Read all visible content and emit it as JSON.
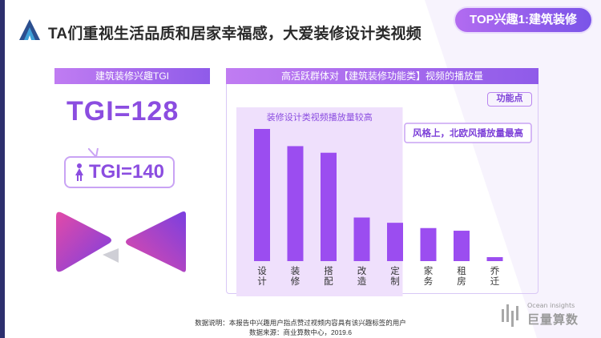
{
  "page": {
    "title": "TA们重视生活品质和居家幸福感，大爱装修设计类视频",
    "tag": "TOP兴趣1:建筑装修"
  },
  "left": {
    "header": "建筑装修兴趣TGI",
    "tgi_main": "TGI=128",
    "tgi_female": "TGI=140"
  },
  "colors": {
    "accent": "#8b4de0",
    "bar": "#9b4df0",
    "highlight": "#efe0fc"
  },
  "panel": {
    "header": "高活跃群体对【建筑装修功能类】视频的播放量",
    "feature_tag": "功能点"
  },
  "chart_data": {
    "type": "bar",
    "categories": [
      "设计",
      "装修",
      "搭配",
      "改造",
      "定制",
      "家务",
      "租房",
      "乔迁"
    ],
    "values": [
      100,
      87,
      82,
      33,
      29,
      25,
      23,
      3
    ],
    "title": "",
    "xlabel": "",
    "ylabel": "",
    "ylim": [
      0,
      100
    ],
    "grid": false,
    "highlight_region": {
      "categories": [
        "设计",
        "装修",
        "搭配",
        "改造",
        "定制"
      ],
      "label": "装修设计类视频播放量较高"
    },
    "annotation": "风格上，北欧风播放量最高"
  },
  "footer": {
    "note": "数据说明：本报告中兴趣用户指点赞过视频内容具有该兴趣标签的用户",
    "source": "数据来源：商业算数中心，2019.6"
  },
  "brand": {
    "en": "Ocean insights",
    "cn": "巨量算数"
  }
}
